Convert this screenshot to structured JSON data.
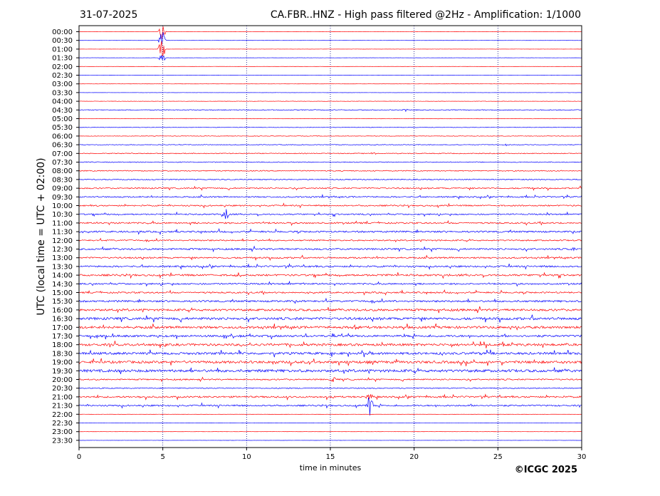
{
  "header": {
    "date": "31-07-2025",
    "title": "CA.FBR..HNZ - High pass filtered @2Hz - Amplification: 1/1000"
  },
  "footer": {
    "copyright": "©ICGC 2025"
  },
  "colors": {
    "red_trace": "#ff0000",
    "blue_trace": "#0000ff",
    "axes": "#000000",
    "gridline": "#000080"
  },
  "chart_data": {
    "type": "line",
    "title": "CA.FBR..HNZ - High pass filtered @2Hz - Amplification: 1/1000",
    "xlabel": "time in minutes",
    "ylabel": "UTC (local time = UTC + 02:00)",
    "xlim": [
      0,
      30
    ],
    "x_ticks": [
      0,
      5,
      10,
      15,
      20,
      25,
      30
    ],
    "vertical_gridlines_at_minutes": [
      5,
      10,
      15,
      20,
      25
    ],
    "y_tick_labels": [
      "00:00",
      "00:30",
      "01:00",
      "01:30",
      "02:00",
      "02:30",
      "03:00",
      "03:30",
      "04:00",
      "04:30",
      "05:00",
      "05:30",
      "06:00",
      "06:30",
      "07:00",
      "07:30",
      "08:00",
      "08:30",
      "09:00",
      "09:30",
      "10:00",
      "10:30",
      "11:00",
      "11:30",
      "12:00",
      "12:30",
      "13:00",
      "13:30",
      "14:00",
      "14:30",
      "15:00",
      "15:30",
      "16:00",
      "16:30",
      "17:00",
      "17:30",
      "18:00",
      "18:30",
      "19:00",
      "19:30",
      "20:00",
      "20:30",
      "21:00",
      "21:30",
      "22:00",
      "22:30",
      "23:00",
      "23:30"
    ],
    "trace_color_cycle": [
      "red",
      "blue"
    ],
    "noise_level_per_row": [
      0.1,
      0.1,
      0.1,
      0.1,
      0.1,
      0.1,
      0.1,
      0.1,
      0.2,
      0.5,
      0.3,
      0.3,
      0.3,
      0.4,
      0.5,
      0.5,
      0.6,
      0.6,
      0.8,
      0.8,
      0.8,
      0.8,
      0.9,
      1.0,
      0.8,
      1.0,
      0.9,
      1.0,
      1.1,
      0.9,
      0.9,
      1.1,
      1.3,
      1.5,
      1.4,
      1.2,
      1.4,
      1.4,
      1.5,
      1.6,
      0.8,
      0.6,
      1.0,
      0.9,
      0.1,
      0.1,
      0.1,
      0.1
    ],
    "events": [
      {
        "row": 0,
        "minute": 4.95,
        "amplitude": 3.5
      },
      {
        "row": 1,
        "minute": 4.95,
        "amplitude": 4.0
      },
      {
        "row": 2,
        "minute": 4.95,
        "amplitude": 5.0
      },
      {
        "row": 3,
        "minute": 4.95,
        "amplitude": 2.0
      },
      {
        "row": 9,
        "minute": 19.5,
        "amplitude": 0.6
      },
      {
        "row": 13,
        "minute": 25.5,
        "amplitude": 0.5
      },
      {
        "row": 14,
        "minute": 17.6,
        "amplitude": 0.6
      },
      {
        "row": 21,
        "minute": 8.8,
        "amplitude": 2.2
      },
      {
        "row": 25,
        "minute": 29.5,
        "amplitude": 0.7
      },
      {
        "row": 28,
        "minute": 9.5,
        "amplitude": 0.9
      },
      {
        "row": 34,
        "minute": 16.5,
        "amplitude": 0.8
      },
      {
        "row": 39,
        "minute": 5.4,
        "amplitude": 0.8
      },
      {
        "row": 40,
        "minute": 15.2,
        "amplitude": 0.8
      },
      {
        "row": 43,
        "minute": 17.35,
        "amplitude": 5.0
      },
      {
        "row": 42,
        "minute": 17.35,
        "amplitude": 1.5
      }
    ]
  }
}
